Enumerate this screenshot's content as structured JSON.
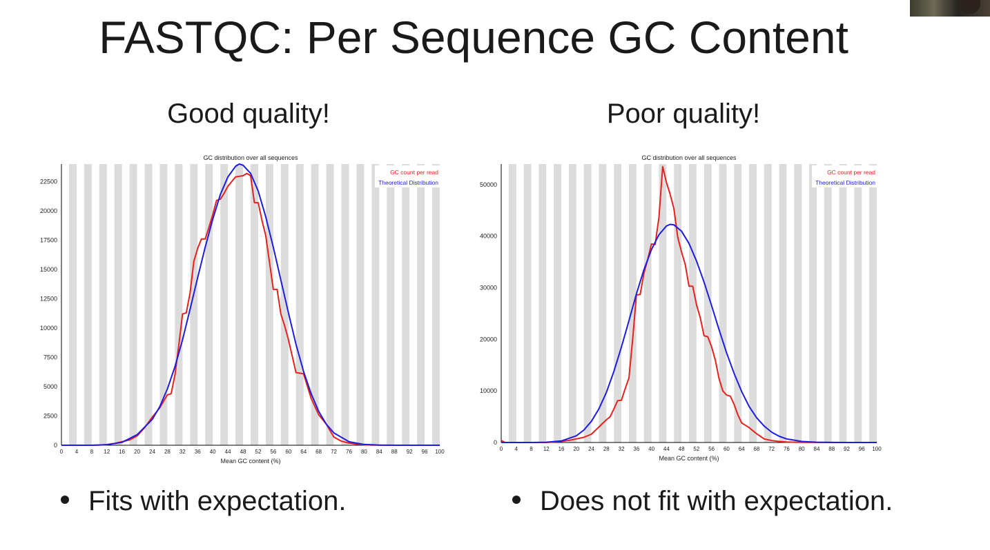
{
  "slide": {
    "title": "FASTQC: Per Sequence GC Content",
    "left_heading": "Good quality!",
    "right_heading": "Poor quality!",
    "left_bullet": "Fits with expectation.",
    "right_bullet": "Does not fit with expectation."
  },
  "colors": {
    "observed": "#e8201c",
    "theoretical": "#1c1ce0",
    "grid_band": "#dcdcdc"
  },
  "chart_data": [
    {
      "type": "line",
      "title": "GC distribution over all sequences",
      "xlabel": "Mean GC content (%)",
      "ylabel": "",
      "xlim": [
        0,
        100
      ],
      "ylim": [
        0,
        24000
      ],
      "xticks": [
        0,
        4,
        8,
        12,
        16,
        20,
        24,
        28,
        32,
        36,
        40,
        44,
        48,
        52,
        56,
        60,
        64,
        68,
        72,
        76,
        80,
        84,
        88,
        92,
        96,
        100
      ],
      "yticks": [
        0,
        2500,
        5000,
        7500,
        10000,
        12500,
        15000,
        17500,
        20000,
        22500
      ],
      "grid": "vertical bands",
      "legend_position": "top-right",
      "series": [
        {
          "name": "GC count per read",
          "x": [
            0,
            2,
            4,
            6,
            8,
            10,
            12,
            14,
            16,
            18,
            20,
            22,
            24,
            26,
            28,
            29,
            30,
            31,
            32,
            33,
            34,
            35,
            36,
            37,
            38,
            39,
            40,
            41,
            42,
            43,
            44,
            45,
            46,
            47,
            48,
            49,
            50,
            51,
            52,
            53,
            54,
            55,
            56,
            57,
            58,
            59,
            60,
            62,
            64,
            66,
            68,
            70,
            72,
            74,
            76,
            78,
            80,
            82,
            84,
            86,
            90,
            100
          ],
          "y": [
            0,
            0,
            0,
            0,
            0,
            20,
            60,
            150,
            300,
            450,
            800,
            1500,
            2400,
            3200,
            4300,
            4400,
            6000,
            8500,
            11200,
            11300,
            13000,
            15700,
            16800,
            17600,
            17600,
            18600,
            19700,
            20900,
            21000,
            21500,
            22100,
            22500,
            22900,
            22950,
            23000,
            23200,
            23000,
            20700,
            20700,
            19200,
            17900,
            15600,
            13300,
            13300,
            11200,
            10200,
            9000,
            6200,
            6100,
            4000,
            2600,
            1800,
            700,
            350,
            180,
            90,
            40,
            15,
            5,
            0,
            0,
            0
          ]
        },
        {
          "name": "Theoretical Distribution",
          "x": [
            0,
            4,
            8,
            12,
            16,
            20,
            24,
            26,
            28,
            30,
            32,
            34,
            36,
            38,
            40,
            42,
            44,
            46,
            47,
            48,
            50,
            52,
            54,
            56,
            58,
            60,
            62,
            64,
            66,
            68,
            70,
            72,
            76,
            80,
            84,
            88,
            92,
            96,
            100
          ],
          "y": [
            0,
            0,
            0,
            40,
            250,
            900,
            2200,
            3300,
            4800,
            6700,
            9000,
            11600,
            14300,
            16900,
            19300,
            21400,
            22900,
            23800,
            24000,
            23900,
            23200,
            21700,
            19500,
            16900,
            14100,
            11300,
            8600,
            6300,
            4400,
            2900,
            1800,
            1050,
            300,
            70,
            10,
            0,
            0,
            0,
            0
          ]
        }
      ]
    },
    {
      "type": "line",
      "title": "GC distribution over all sequences",
      "xlabel": "Mean GC content (%)",
      "ylabel": "",
      "xlim": [
        0,
        100
      ],
      "ylim": [
        0,
        54000
      ],
      "xticks": [
        0,
        4,
        8,
        12,
        16,
        20,
        24,
        28,
        32,
        36,
        40,
        44,
        48,
        52,
        56,
        60,
        64,
        68,
        72,
        76,
        80,
        84,
        88,
        92,
        96,
        100
      ],
      "yticks": [
        0,
        10000,
        20000,
        30000,
        40000,
        50000
      ],
      "grid": "vertical bands",
      "legend_position": "top-right",
      "series": [
        {
          "name": "GC count per read",
          "x": [
            0,
            1,
            2,
            4,
            8,
            12,
            16,
            18,
            20,
            22,
            24,
            26,
            28,
            29,
            30,
            31,
            32,
            33,
            34,
            35,
            36,
            37,
            38,
            39,
            40,
            41,
            42,
            43,
            44,
            45,
            46,
            47,
            48,
            49,
            50,
            51,
            52,
            53,
            54,
            55,
            56,
            57,
            58,
            59,
            60,
            61,
            62,
            63,
            64,
            66,
            68,
            69,
            70,
            72,
            74,
            76,
            78,
            80,
            84,
            90,
            96,
            100
          ],
          "y": [
            400,
            0,
            0,
            0,
            0,
            0,
            200,
            400,
            700,
            1000,
            1600,
            3000,
            4400,
            5000,
            6500,
            8100,
            8200,
            10400,
            12500,
            20000,
            28600,
            28700,
            32800,
            35500,
            38500,
            38400,
            43700,
            53500,
            50400,
            48100,
            45300,
            39800,
            37000,
            34500,
            30300,
            30300,
            26700,
            24200,
            20700,
            20500,
            18600,
            16000,
            12400,
            10000,
            9200,
            9000,
            7400,
            5400,
            3800,
            2900,
            1700,
            1200,
            700,
            380,
            200,
            100,
            60,
            30,
            10,
            0,
            0,
            0
          ]
        },
        {
          "name": "Theoretical Distribution",
          "x": [
            0,
            4,
            8,
            12,
            16,
            20,
            22,
            24,
            26,
            28,
            30,
            32,
            34,
            36,
            38,
            40,
            42,
            44,
            45,
            46,
            48,
            50,
            52,
            54,
            56,
            58,
            60,
            62,
            64,
            66,
            68,
            70,
            72,
            74,
            76,
            80,
            84,
            88,
            92,
            100
          ],
          "y": [
            0,
            0,
            0,
            50,
            300,
            1300,
            2400,
            4100,
            6500,
            9700,
            13800,
            18500,
            23600,
            28800,
            33500,
            37400,
            40300,
            42000,
            42300,
            42200,
            41000,
            38600,
            35200,
            31100,
            26600,
            21900,
            17400,
            13400,
            9900,
            7000,
            4800,
            3200,
            2000,
            1200,
            700,
            200,
            50,
            10,
            0,
            0
          ]
        }
      ]
    }
  ]
}
